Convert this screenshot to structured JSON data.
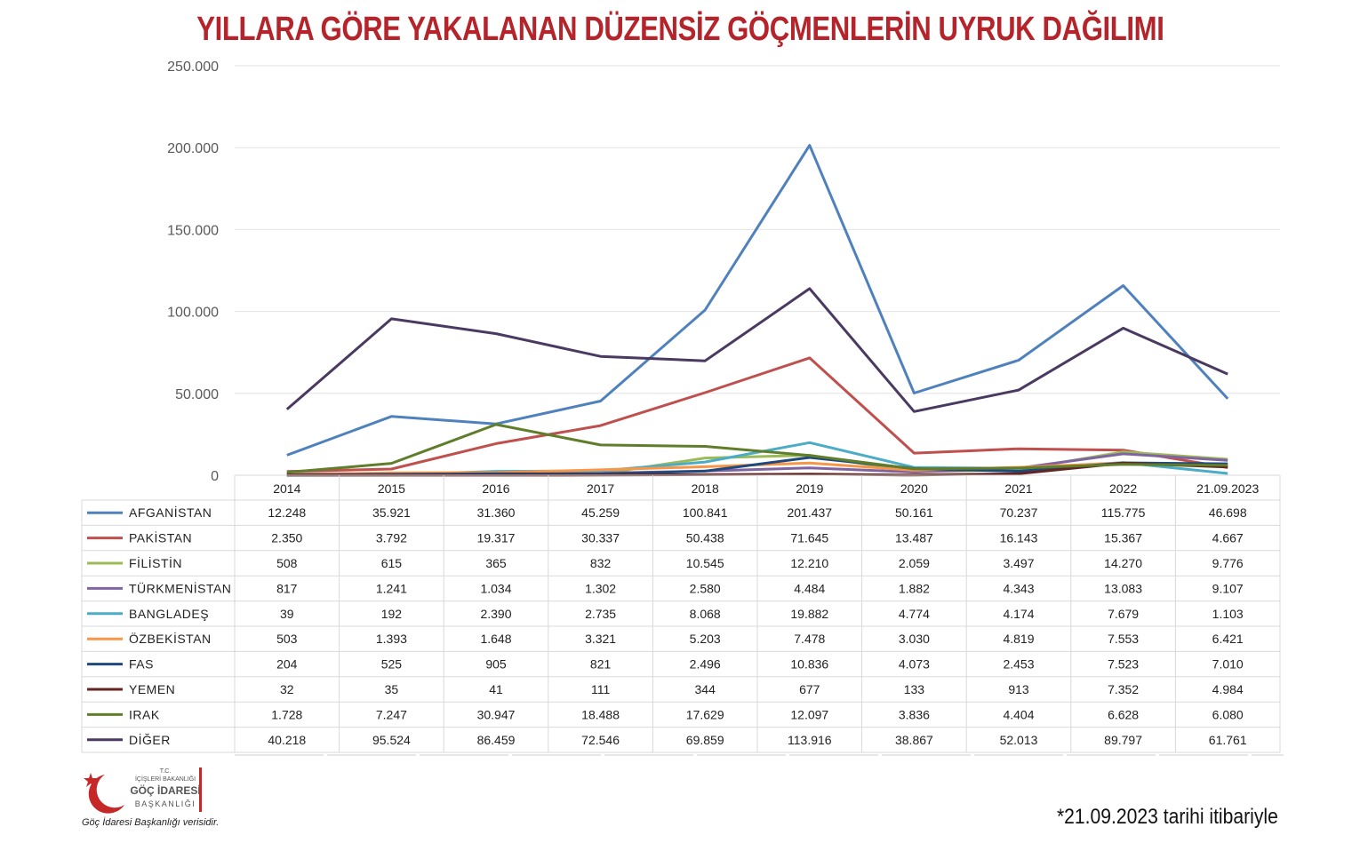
{
  "title": "YILLARA GÖRE YAKALANAN DÜZENSİZ GÖÇMENLERİN UYRUK DAĞILIMI",
  "footnote": "*21.09.2023 tarihi itibariyle",
  "source_note": "Göç İdaresi Başkanlığı verisidir.",
  "logo": {
    "line1": "T.C.",
    "line2": "İÇİŞLERİ BAKANLIĞI",
    "line3": "GÖÇ İDARESİ",
    "line4": "BAŞKANLIĞI",
    "accent": "#c62828"
  },
  "chart_data": {
    "type": "line",
    "ylim": [
      0,
      250000
    ],
    "yticks": [
      0,
      50000,
      100000,
      150000,
      200000,
      250000
    ],
    "ytick_labels": [
      "0",
      "50.000",
      "100.000",
      "150.000",
      "200.000",
      "250.000"
    ],
    "grid": true,
    "legend": "data-table",
    "categories": [
      "2014",
      "2015",
      "2016",
      "2017",
      "2018",
      "2019",
      "2020",
      "2021",
      "2022",
      "21.09.2023"
    ],
    "series": [
      {
        "name": "AFGANİSTAN",
        "color": "#4f81bd",
        "values": [
          12248,
          35921,
          31360,
          45259,
          100841,
          201437,
          50161,
          70237,
          115775,
          46698
        ],
        "labels": [
          "12.248",
          "35.921",
          "31.360",
          "45.259",
          "100.841",
          "201.437",
          "50.161",
          "70.237",
          "115.775",
          "46.698"
        ]
      },
      {
        "name": "PAKİSTAN",
        "color": "#c0504d",
        "values": [
          2350,
          3792,
          19317,
          30337,
          50438,
          71645,
          13487,
          16143,
          15367,
          4667
        ],
        "labels": [
          "2.350",
          "3.792",
          "19.317",
          "30.337",
          "50.438",
          "71.645",
          "13.487",
          "16.143",
          "15.367",
          "4.667"
        ]
      },
      {
        "name": "FİLİSTİN",
        "color": "#9bbb59",
        "values": [
          508,
          615,
          365,
          832,
          10545,
          12210,
          2059,
          3497,
          14270,
          9776
        ],
        "labels": [
          "508",
          "615",
          "365",
          "832",
          "10.545",
          "12.210",
          "2.059",
          "3.497",
          "14.270",
          "9.776"
        ]
      },
      {
        "name": "TÜRKMENİSTAN",
        "color": "#8064a2",
        "values": [
          817,
          1241,
          1034,
          1302,
          2580,
          4484,
          1882,
          4343,
          13083,
          9107
        ],
        "labels": [
          "817",
          "1.241",
          "1.034",
          "1.302",
          "2.580",
          "4.484",
          "1.882",
          "4.343",
          "13.083",
          "9.107"
        ]
      },
      {
        "name": "BANGLADEŞ",
        "color": "#4bacc6",
        "values": [
          39,
          192,
          2390,
          2735,
          8068,
          19882,
          4774,
          4174,
          7679,
          1103
        ],
        "labels": [
          "39",
          "192",
          "2.390",
          "2.735",
          "8.068",
          "19.882",
          "4.774",
          "4.174",
          "7.679",
          "1.103"
        ]
      },
      {
        "name": "ÖZBEKİSTAN",
        "color": "#f79646",
        "values": [
          503,
          1393,
          1648,
          3321,
          5203,
          7478,
          3030,
          4819,
          7553,
          6421
        ],
        "labels": [
          "503",
          "1.393",
          "1.648",
          "3.321",
          "5.203",
          "7.478",
          "3.030",
          "4.819",
          "7.553",
          "6.421"
        ]
      },
      {
        "name": "FAS",
        "color": "#1f497d",
        "values": [
          204,
          525,
          905,
          821,
          2496,
          10836,
          4073,
          2453,
          7523,
          7010
        ],
        "labels": [
          "204",
          "525",
          "905",
          "821",
          "2.496",
          "10.836",
          "4.073",
          "2.453",
          "7.523",
          "7.010"
        ]
      },
      {
        "name": "YEMEN",
        "color": "#632523",
        "values": [
          32,
          35,
          41,
          111,
          344,
          677,
          133,
          913,
          7352,
          4984
        ],
        "labels": [
          "32",
          "35",
          "41",
          "111",
          "344",
          "677",
          "133",
          "913",
          "7.352",
          "4.984"
        ]
      },
      {
        "name": "IRAK",
        "color": "#5f7d2b",
        "values": [
          1728,
          7247,
          30947,
          18488,
          17629,
          12097,
          3836,
          4404,
          6628,
          6080
        ],
        "labels": [
          "1.728",
          "7.247",
          "30.947",
          "18.488",
          "17.629",
          "12.097",
          "3.836",
          "4.404",
          "6.628",
          "6.080"
        ]
      },
      {
        "name": "DİĞER",
        "color": "#4a3960",
        "values": [
          40218,
          95524,
          86459,
          72546,
          69859,
          113916,
          38867,
          52013,
          89797,
          61761
        ],
        "labels": [
          "40.218",
          "95.524",
          "86.459",
          "72.546",
          "69.859",
          "113.916",
          "38.867",
          "52.013",
          "89.797",
          "61.761"
        ]
      }
    ]
  }
}
